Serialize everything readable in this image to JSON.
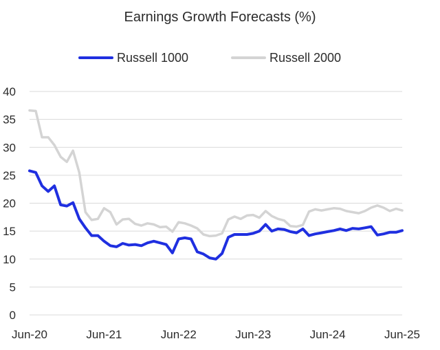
{
  "chart_data": {
    "type": "line",
    "title": "Earnings Growth Forecasts (%)",
    "xlabel": "",
    "ylabel": "",
    "ylim": [
      0,
      40
    ],
    "yticks": [
      0,
      5,
      10,
      15,
      20,
      25,
      30,
      35,
      40
    ],
    "xticks": [
      "Jun-20",
      "Jun-21",
      "Jun-22",
      "Jun-23",
      "Jun-24",
      "Jun-25"
    ],
    "grid": true,
    "legend_position": "top",
    "x": [
      "2020-06",
      "2020-07",
      "2020-08",
      "2020-09",
      "2020-10",
      "2020-11",
      "2020-12",
      "2021-01",
      "2021-02",
      "2021-03",
      "2021-04",
      "2021-05",
      "2021-06",
      "2021-07",
      "2021-08",
      "2021-09",
      "2021-10",
      "2021-11",
      "2021-12",
      "2022-01",
      "2022-02",
      "2022-03",
      "2022-04",
      "2022-05",
      "2022-06",
      "2022-07",
      "2022-08",
      "2022-09",
      "2022-10",
      "2022-11",
      "2022-12",
      "2023-01",
      "2023-02",
      "2023-03",
      "2023-04",
      "2023-05",
      "2023-06",
      "2023-07",
      "2023-08",
      "2023-09",
      "2023-10",
      "2023-11",
      "2023-12",
      "2024-01",
      "2024-02",
      "2024-03",
      "2024-04",
      "2024-05",
      "2024-06",
      "2024-07",
      "2024-08",
      "2024-09",
      "2024-10",
      "2024-11",
      "2024-12",
      "2025-01",
      "2025-02",
      "2025-03",
      "2025-04",
      "2025-05",
      "2025-06"
    ],
    "series": [
      {
        "name": "Russell 1000",
        "color": "#1f2fe0",
        "values": [
          25.8,
          25.5,
          23.1,
          22.1,
          23.1,
          19.7,
          19.5,
          20.1,
          17.2,
          15.6,
          14.2,
          14.2,
          13.2,
          12.4,
          12.2,
          12.8,
          12.5,
          12.6,
          12.4,
          12.9,
          13.2,
          12.9,
          12.6,
          11.1,
          13.6,
          13.8,
          13.6,
          11.3,
          10.9,
          10.2,
          10.0,
          11.0,
          13.9,
          14.4,
          14.4,
          14.4,
          14.6,
          15.0,
          16.2,
          15.0,
          15.4,
          15.3,
          14.9,
          14.7,
          15.4,
          14.2,
          14.5,
          14.7,
          14.9,
          15.1,
          15.4,
          15.1,
          15.5,
          15.4,
          15.6,
          15.8,
          14.3,
          14.5,
          14.8,
          14.8,
          15.1
        ]
      },
      {
        "name": "Russell 2000",
        "color": "#d4d4d4",
        "values": [
          36.6,
          36.5,
          31.8,
          31.8,
          30.4,
          28.3,
          27.4,
          29.4,
          25.5,
          18.4,
          17.0,
          17.2,
          19.1,
          18.4,
          16.2,
          17.1,
          17.2,
          16.3,
          16.0,
          16.4,
          16.2,
          15.7,
          15.8,
          14.9,
          16.6,
          16.4,
          16.0,
          15.5,
          14.4,
          14.1,
          14.2,
          14.6,
          17.1,
          17.6,
          17.2,
          17.8,
          17.9,
          17.4,
          18.6,
          17.7,
          17.2,
          16.9,
          15.9,
          15.8,
          16.1,
          18.5,
          18.9,
          18.7,
          18.9,
          19.1,
          19.0,
          18.6,
          18.4,
          18.2,
          18.6,
          19.2,
          19.6,
          19.2,
          18.6,
          19.0,
          18.7
        ]
      }
    ]
  }
}
